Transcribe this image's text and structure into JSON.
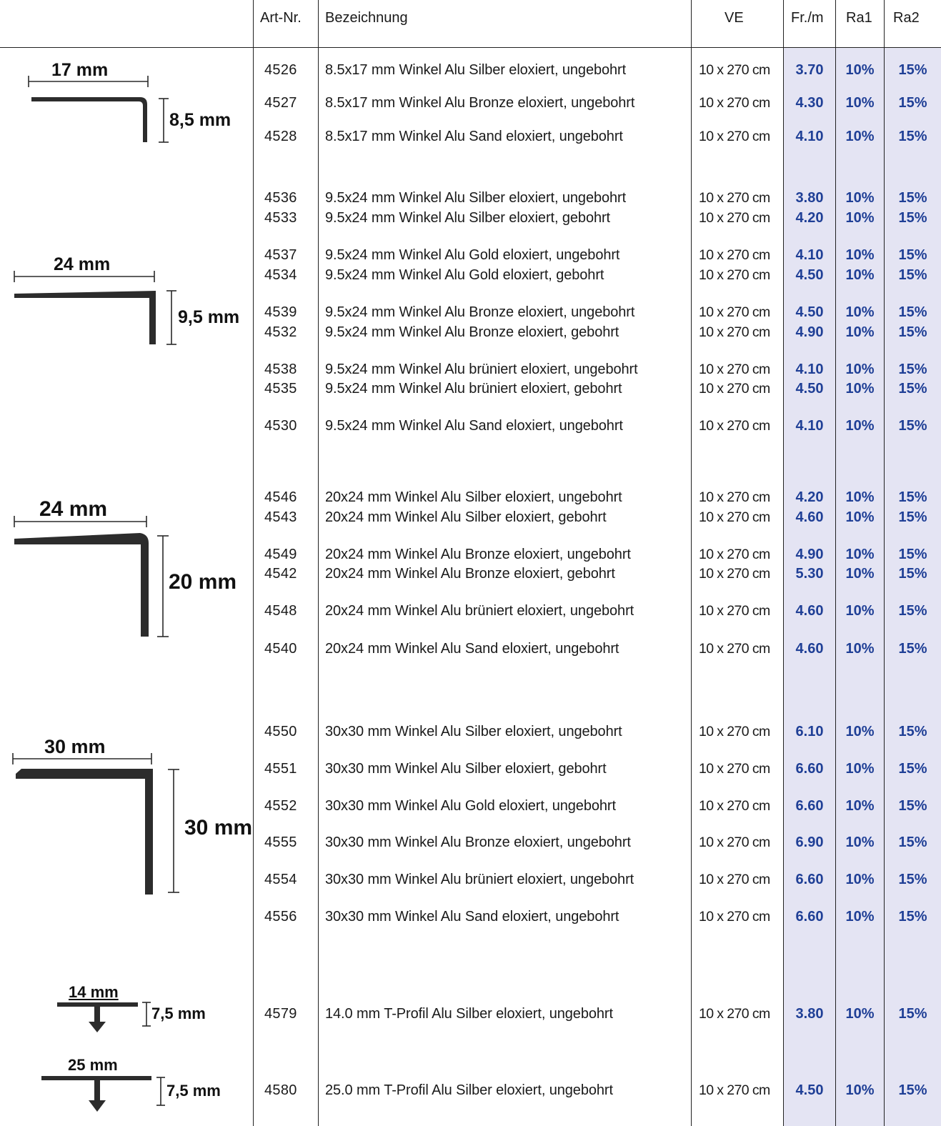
{
  "table": {
    "headers": {
      "art_nr": "Art-Nr.",
      "bezeichnung": "Bezeichnung",
      "ve": "VE",
      "fr_m": "Fr./m",
      "ra1": "Ra1",
      "ra2": "Ra2"
    },
    "rows": [
      {
        "art": "4526",
        "desc": "8.5x17 mm Winkel Alu Silber eloxiert, ungebohrt",
        "ve": "10 x 270 cm",
        "fr": "3.70",
        "ra1": "10%",
        "ra2": "15%"
      },
      {
        "art": "4527",
        "desc": "8.5x17 mm Winkel Alu Bronze eloxiert, ungebohrt",
        "ve": "10 x 270 cm",
        "fr": "4.30",
        "ra1": "10%",
        "ra2": "15%"
      },
      {
        "art": "4528",
        "desc": "8.5x17 mm Winkel Alu Sand eloxiert, ungebohrt",
        "ve": "10 x 270 cm",
        "fr": "4.10",
        "ra1": "10%",
        "ra2": "15%"
      },
      {
        "art": "4536",
        "desc": "9.5x24 mm Winkel Alu Silber eloxiert, ungebohrt",
        "ve": "10 x 270 cm",
        "fr": "3.80",
        "ra1": "10%",
        "ra2": "15%"
      },
      {
        "art": "4533",
        "desc": "9.5x24 mm Winkel Alu Silber eloxiert, gebohrt",
        "ve": "10 x 270 cm",
        "fr": "4.20",
        "ra1": "10%",
        "ra2": "15%"
      },
      {
        "art": "4537",
        "desc": "9.5x24 mm Winkel Alu Gold eloxiert, ungebohrt",
        "ve": "10 x 270 cm",
        "fr": "4.10",
        "ra1": "10%",
        "ra2": "15%"
      },
      {
        "art": "4534",
        "desc": "9.5x24 mm Winkel Alu Gold eloxiert, gebohrt",
        "ve": "10 x 270 cm",
        "fr": "4.50",
        "ra1": "10%",
        "ra2": "15%"
      },
      {
        "art": "4539",
        "desc": "9.5x24 mm Winkel Alu Bronze eloxiert, ungebohrt",
        "ve": "10 x 270 cm",
        "fr": "4.50",
        "ra1": "10%",
        "ra2": "15%"
      },
      {
        "art": "4532",
        "desc": "9.5x24 mm Winkel Alu Bronze eloxiert, gebohrt",
        "ve": "10 x 270 cm",
        "fr": "4.90",
        "ra1": "10%",
        "ra2": "15%"
      },
      {
        "art": "4538",
        "desc": "9.5x24 mm Winkel Alu brüniert eloxiert, ungebohrt",
        "ve": "10 x 270 cm",
        "fr": "4.10",
        "ra1": "10%",
        "ra2": "15%"
      },
      {
        "art": "4535",
        "desc": "9.5x24 mm Winkel Alu brüniert eloxiert, gebohrt",
        "ve": "10 x 270 cm",
        "fr": "4.50",
        "ra1": "10%",
        "ra2": "15%"
      },
      {
        "art": "4530",
        "desc": "9.5x24 mm Winkel Alu Sand eloxiert, ungebohrt",
        "ve": "10 x 270 cm",
        "fr": "4.10",
        "ra1": "10%",
        "ra2": "15%"
      },
      {
        "art": "4546",
        "desc": "20x24 mm Winkel Alu Silber eloxiert, ungebohrt",
        "ve": "10 x 270 cm",
        "fr": "4.20",
        "ra1": "10%",
        "ra2": "15%"
      },
      {
        "art": "4543",
        "desc": "20x24 mm Winkel Alu Silber eloxiert, gebohrt",
        "ve": "10 x 270 cm",
        "fr": "4.60",
        "ra1": "10%",
        "ra2": "15%"
      },
      {
        "art": "4549",
        "desc": "20x24 mm Winkel Alu Bronze eloxiert, ungebohrt",
        "ve": "10 x 270 cm",
        "fr": "4.90",
        "ra1": "10%",
        "ra2": "15%"
      },
      {
        "art": "4542",
        "desc": "20x24 mm Winkel Alu Bronze eloxiert, gebohrt",
        "ve": "10 x 270 cm",
        "fr": "5.30",
        "ra1": "10%",
        "ra2": "15%"
      },
      {
        "art": "4548",
        "desc": "20x24 mm Winkel Alu brüniert eloxiert, ungebohrt",
        "ve": "10 x 270 cm",
        "fr": "4.60",
        "ra1": "10%",
        "ra2": "15%"
      },
      {
        "art": "4540",
        "desc": "20x24 mm Winkel Alu Sand eloxiert, ungebohrt",
        "ve": "10 x 270 cm",
        "fr": "4.60",
        "ra1": "10%",
        "ra2": "15%"
      },
      {
        "art": "4550",
        "desc": "30x30 mm Winkel Alu Silber eloxiert, ungebohrt",
        "ve": "10 x 270 cm",
        "fr": "6.10",
        "ra1": "10%",
        "ra2": "15%"
      },
      {
        "art": "4551",
        "desc": "30x30 mm Winkel Alu Silber eloxiert, gebohrt",
        "ve": "10 x 270 cm",
        "fr": "6.60",
        "ra1": "10%",
        "ra2": "15%"
      },
      {
        "art": "4552",
        "desc": "30x30 mm Winkel Alu Gold eloxiert, ungebohrt",
        "ve": "10 x 270 cm",
        "fr": "6.60",
        "ra1": "10%",
        "ra2": "15%"
      },
      {
        "art": "4555",
        "desc": "30x30 mm Winkel Alu Bronze eloxiert, ungebohrt",
        "ve": "10 x 270 cm",
        "fr": "6.90",
        "ra1": "10%",
        "ra2": "15%"
      },
      {
        "art": "4554",
        "desc": "30x30 mm Winkel Alu brüniert eloxiert, ungebohrt",
        "ve": "10 x 270 cm",
        "fr": "6.60",
        "ra1": "10%",
        "ra2": "15%"
      },
      {
        "art": "4556",
        "desc": "30x30 mm Winkel Alu Sand eloxiert, ungebohrt",
        "ve": "10 x 270 cm",
        "fr": "6.60",
        "ra1": "10%",
        "ra2": "15%"
      },
      {
        "art": "4579",
        "desc": "14.0 mm T-Profil Alu Silber eloxiert, ungebohrt",
        "ve": "10 x 270 cm",
        "fr": "3.80",
        "ra1": "10%",
        "ra2": "15%"
      },
      {
        "art": "4580",
        "desc": "25.0 mm T-Profil Alu Silber eloxiert, ungebohrt",
        "ve": "10 x 270 cm",
        "fr": "4.50",
        "ra1": "10%",
        "ra2": "15%"
      }
    ]
  },
  "profiles": [
    {
      "width": "17 mm",
      "height": "8,5 mm"
    },
    {
      "width": "24 mm",
      "height": "9,5 mm"
    },
    {
      "width": "24 mm",
      "height": "20 mm"
    },
    {
      "width": "30 mm",
      "height": "30 mm"
    },
    {
      "width": "14 mm",
      "height": "7,5 mm"
    },
    {
      "width": "25 mm",
      "height": "7,5 mm"
    }
  ],
  "colors": {
    "price_text": "#1f3f96",
    "price_shade": "#e4e4f3",
    "rules": "#222222"
  }
}
